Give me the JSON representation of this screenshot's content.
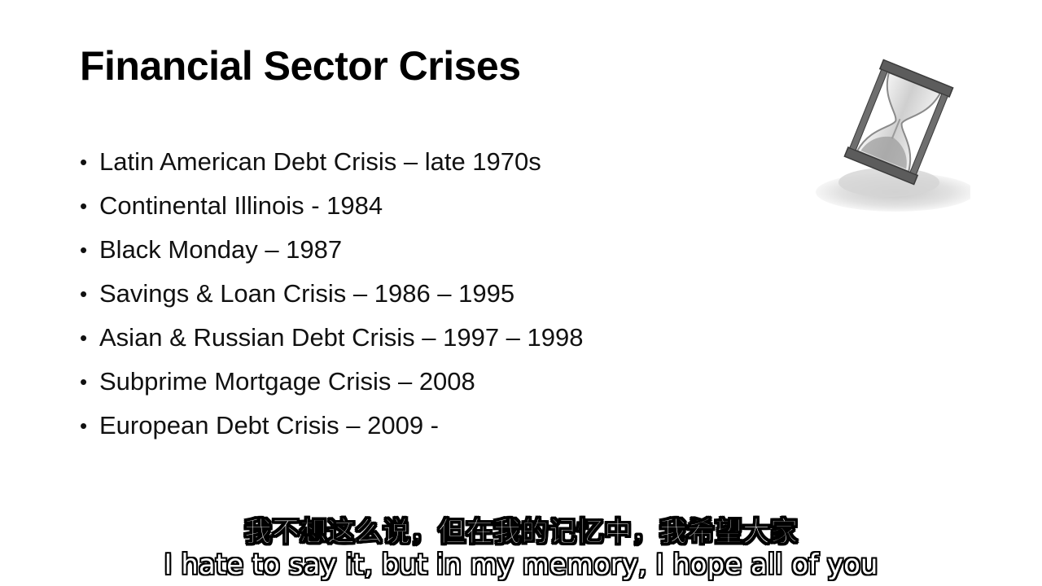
{
  "slide": {
    "title": "Financial Sector Crises",
    "bullet_glyph": "•",
    "bullets": [
      "Latin American Debt Crisis – late 1970s",
      "Continental Illinois - 1984",
      "Black Monday – 1987",
      "Savings & Loan Crisis – 1986 – 1995",
      "Asian & Russian Debt Crisis – 1997 – 1998",
      "Subprime Mortgage Crisis – 2008",
      "European Debt Crisis – 2009 -"
    ],
    "decoration_icon": "hourglass-icon"
  },
  "subtitles": {
    "chinese": "我不想这么说，但在我的记忆中，我希望大家",
    "english": "I hate to say it, but in my memory, I hope all of you"
  },
  "colors": {
    "background": "#ffffff",
    "text": "#111111",
    "subtitle_fill": "#ffffff",
    "subtitle_outline": "#000000"
  }
}
